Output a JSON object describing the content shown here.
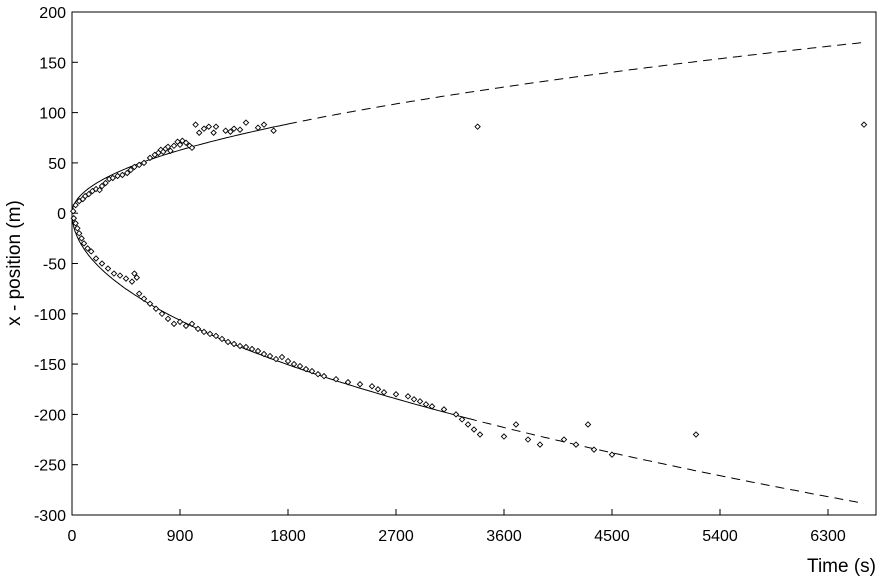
{
  "chart_data": {
    "type": "scatter",
    "title": "",
    "xlabel": "Time (s)",
    "ylabel": "x - position (m)",
    "xlim": [
      0,
      6700
    ],
    "ylim": [
      -300,
      200
    ],
    "xticks": [
      0,
      900,
      1800,
      2700,
      3600,
      4500,
      5400,
      6300
    ],
    "yticks": [
      -300,
      -250,
      -200,
      -150,
      -100,
      -50,
      0,
      50,
      100,
      150,
      200
    ],
    "grid": false,
    "legend": "none",
    "marker": "diamond-open",
    "colors": {
      "marker": "#000000",
      "line": "#000000"
    },
    "fit_curves": [
      {
        "branch": "upper",
        "form": "y = 2.09*sqrt(t)",
        "solid_range": [
          0,
          1800
        ],
        "dashed_range": [
          1800,
          6600
        ]
      },
      {
        "branch": "lower",
        "form": "y = -3.55*sqrt(t)",
        "solid_range": [
          0,
          3300
        ],
        "dashed_range": [
          3300,
          6600
        ]
      }
    ],
    "series": [
      {
        "x": [
          10,
          30,
          60,
          90,
          110,
          140,
          170,
          200,
          230,
          250,
          280,
          310,
          340,
          380,
          420,
          460,
          490,
          520,
          560,
          600,
          650,
          690,
          720,
          740,
          760,
          780,
          800,
          820,
          850,
          880,
          900,
          920,
          950,
          980,
          1000,
          1030,
          1060,
          1100,
          1140,
          1180,
          1200,
          1280,
          1320,
          1350,
          1400,
          1450,
          1550,
          1600,
          1680,
          3380,
          6600
        ],
        "y": [
          2,
          8,
          12,
          14,
          17,
          19,
          22,
          24,
          23,
          27,
          30,
          34,
          35,
          37,
          38,
          40,
          43,
          46,
          48,
          50,
          55,
          58,
          60,
          63,
          61,
          64,
          66,
          62,
          67,
          71,
          68,
          72,
          70,
          67,
          65,
          88,
          80,
          84,
          86,
          80,
          86,
          82,
          81,
          84,
          83,
          90,
          85,
          88,
          82,
          86,
          88
        ]
      },
      {
        "x": [
          15,
          30,
          45,
          60,
          80,
          100,
          130,
          160,
          200,
          250,
          300,
          350,
          400,
          450,
          500,
          520,
          540,
          560,
          600,
          650,
          700,
          750,
          800,
          850,
          900,
          950,
          1000,
          1050,
          1100,
          1150,
          1200,
          1250,
          1300,
          1350,
          1400,
          1450,
          1500,
          1550,
          1600,
          1650,
          1700,
          1750,
          1800,
          1850,
          1900,
          1950,
          2000,
          2050,
          2100,
          2200,
          2300,
          2400,
          2500,
          2550,
          2600,
          2700,
          2800,
          2850,
          2900,
          2950,
          3000,
          3100,
          3200,
          3250,
          3300,
          3350,
          3400,
          3600,
          3700,
          3800,
          3900,
          4100,
          4200,
          4300,
          4350,
          4500,
          5200
        ],
        "y": [
          -5,
          -10,
          -15,
          -20,
          -25,
          -30,
          -35,
          -38,
          -45,
          -50,
          -55,
          -60,
          -62,
          -65,
          -68,
          -60,
          -64,
          -80,
          -85,
          -90,
          -95,
          -100,
          -105,
          -110,
          -108,
          -112,
          -110,
          -115,
          -118,
          -120,
          -122,
          -125,
          -128,
          -130,
          -132,
          -133,
          -135,
          -137,
          -140,
          -142,
          -145,
          -143,
          -147,
          -150,
          -152,
          -155,
          -157,
          -160,
          -162,
          -165,
          -168,
          -170,
          -172,
          -175,
          -178,
          -180,
          -182,
          -185,
          -187,
          -190,
          -192,
          -195,
          -200,
          -205,
          -210,
          -215,
          -220,
          -222,
          -210,
          -225,
          -230,
          -225,
          -230,
          -210,
          -235,
          -240,
          -220
        ]
      }
    ]
  }
}
